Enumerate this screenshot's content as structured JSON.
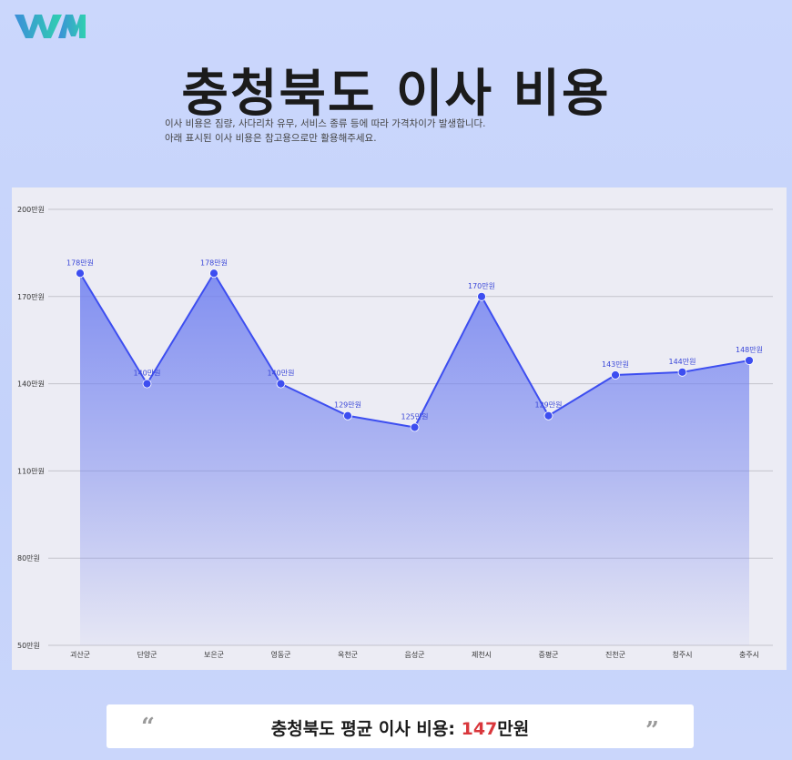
{
  "brand": {
    "logo_text": "WM",
    "logo_colors": [
      "#3c8fd9",
      "#2fd0b0"
    ]
  },
  "header": {
    "title": "충청북도 이사 비용",
    "subtitle_lines": [
      "이사 비용은 짐량, 사다리차 유무, 서비스 종류 등에 따라 가격차이가 발생합니다.",
      "아래 표시된 이사 비용은 참고용으로만 활용해주세요."
    ]
  },
  "chart_data": {
    "type": "area",
    "categories": [
      "괴산군",
      "단양군",
      "보은군",
      "영동군",
      "옥천군",
      "음성군",
      "제천시",
      "증평군",
      "진천군",
      "청주시",
      "충주시"
    ],
    "values": [
      178,
      140,
      178,
      140,
      129,
      125,
      170,
      129,
      143,
      144,
      148
    ],
    "value_labels": [
      "178만원",
      "140만원",
      "178만원",
      "140만원",
      "129만원",
      "125만원",
      "170만원",
      "129만원",
      "143만원",
      "144만원",
      "148만원"
    ],
    "ylim": [
      50,
      200
    ],
    "yticks": [
      50,
      80,
      110,
      140,
      170,
      200
    ],
    "ytick_labels": [
      "50만원",
      "80만원",
      "110만원",
      "140만원",
      "170만원",
      "200만원"
    ],
    "grid": true,
    "line_color": "#3d4ef0",
    "fill_color": "#6f7ff0"
  },
  "footer": {
    "open_quote": "“",
    "close_quote": "”",
    "label": "충청북도 평균 이사 비용: ",
    "value": "147",
    "unit": "만원"
  }
}
